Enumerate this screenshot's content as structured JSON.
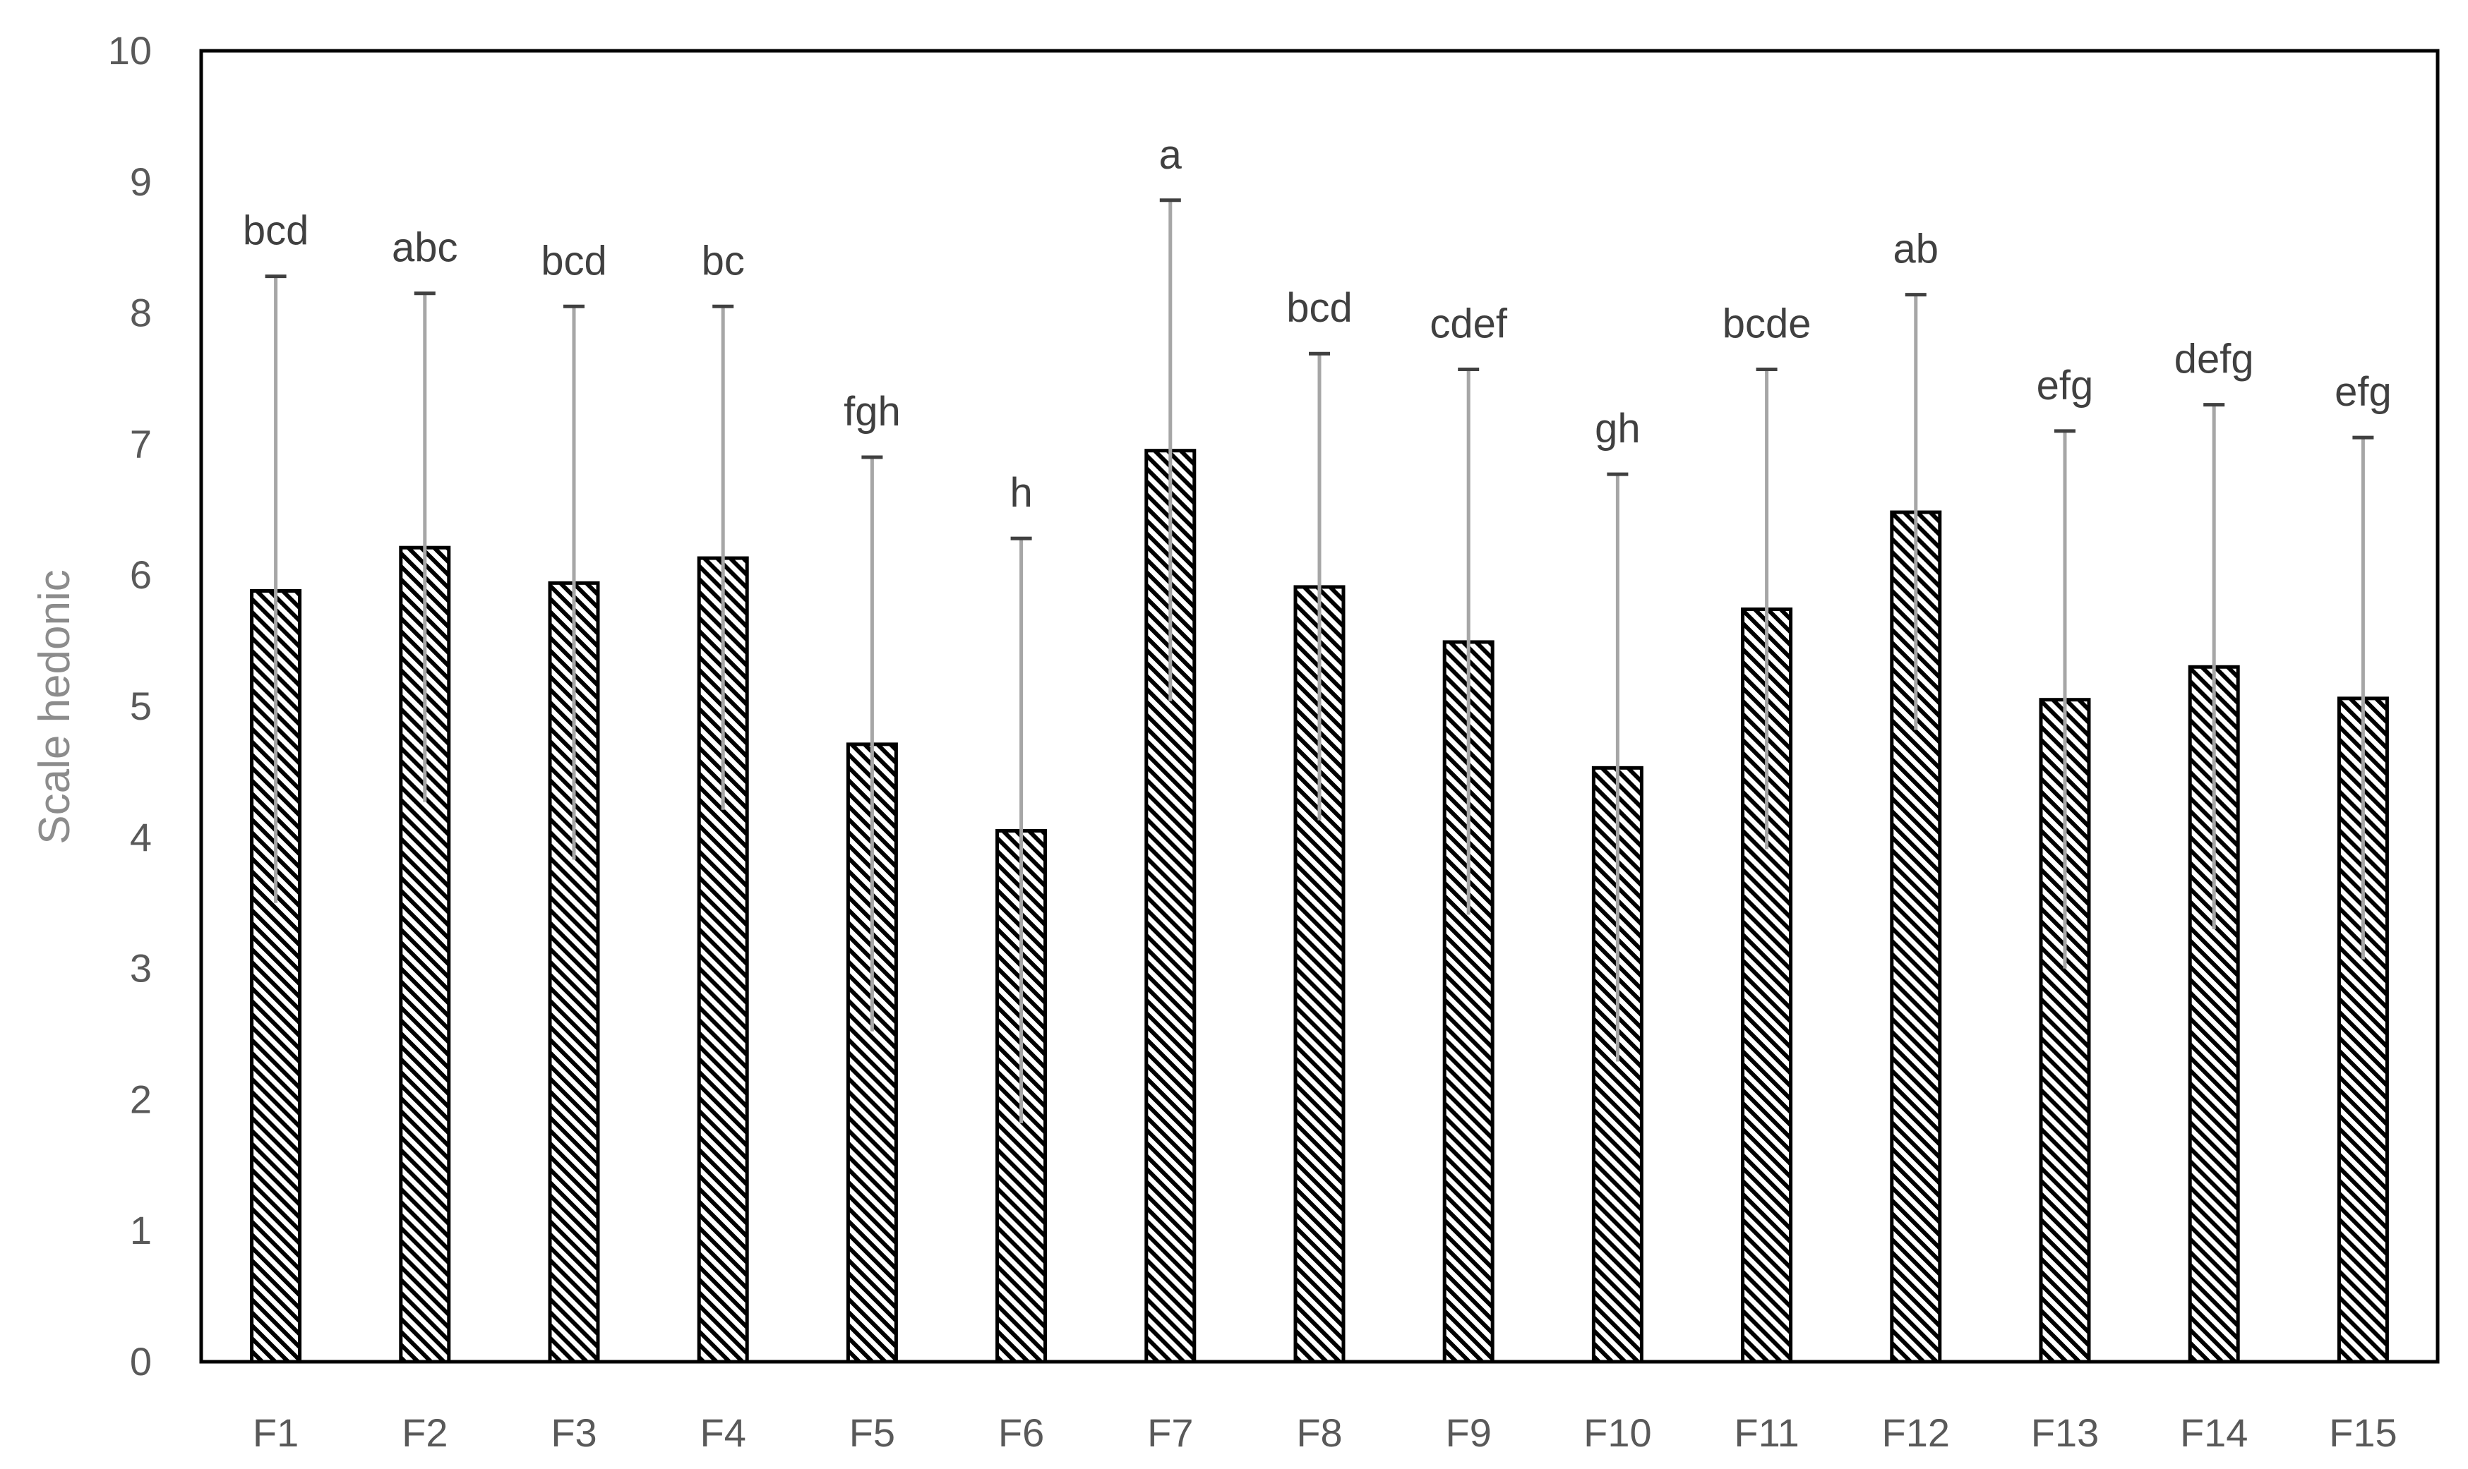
{
  "chart_data": {
    "type": "bar",
    "title": "",
    "xlabel": "",
    "ylabel": "Scale hedonic",
    "ylim": [
      0,
      10
    ],
    "yticks": [
      0,
      1,
      2,
      3,
      4,
      5,
      6,
      7,
      8,
      9,
      10
    ],
    "grid": false,
    "legend": "none",
    "categories": [
      "F1",
      "F2",
      "F3",
      "F4",
      "F5",
      "F6",
      "F7",
      "F8",
      "F9",
      "F10",
      "F11",
      "F12",
      "F13",
      "F14",
      "F15"
    ],
    "values": [
      5.88,
      6.21,
      5.94,
      6.13,
      4.71,
      4.05,
      6.95,
      5.91,
      5.49,
      4.53,
      5.74,
      6.48,
      5.05,
      5.3,
      5.06
    ],
    "error_upper": [
      8.28,
      8.15,
      8.05,
      8.05,
      6.9,
      6.28,
      8.86,
      7.69,
      7.57,
      6.77,
      7.57,
      8.14,
      7.1,
      7.3,
      7.05
    ],
    "error_lower": [
      3.5,
      4.27,
      3.83,
      4.21,
      2.52,
      1.82,
      5.04,
      4.13,
      3.41,
      2.29,
      3.91,
      4.82,
      3.0,
      3.3,
      3.07
    ],
    "significance_labels": [
      "bcd",
      "abc",
      "bcd",
      "bc",
      "fgh",
      "h",
      "a",
      "bcd",
      "cdef",
      "gh",
      "bcde",
      "ab",
      "efg",
      "defg",
      "efg"
    ],
    "colors": {
      "bar_stroke": "#000000",
      "bar_hatch": "#000000",
      "error_bar": "#a6a6a6",
      "error_cap": "#404040",
      "axis": "#000000"
    }
  }
}
